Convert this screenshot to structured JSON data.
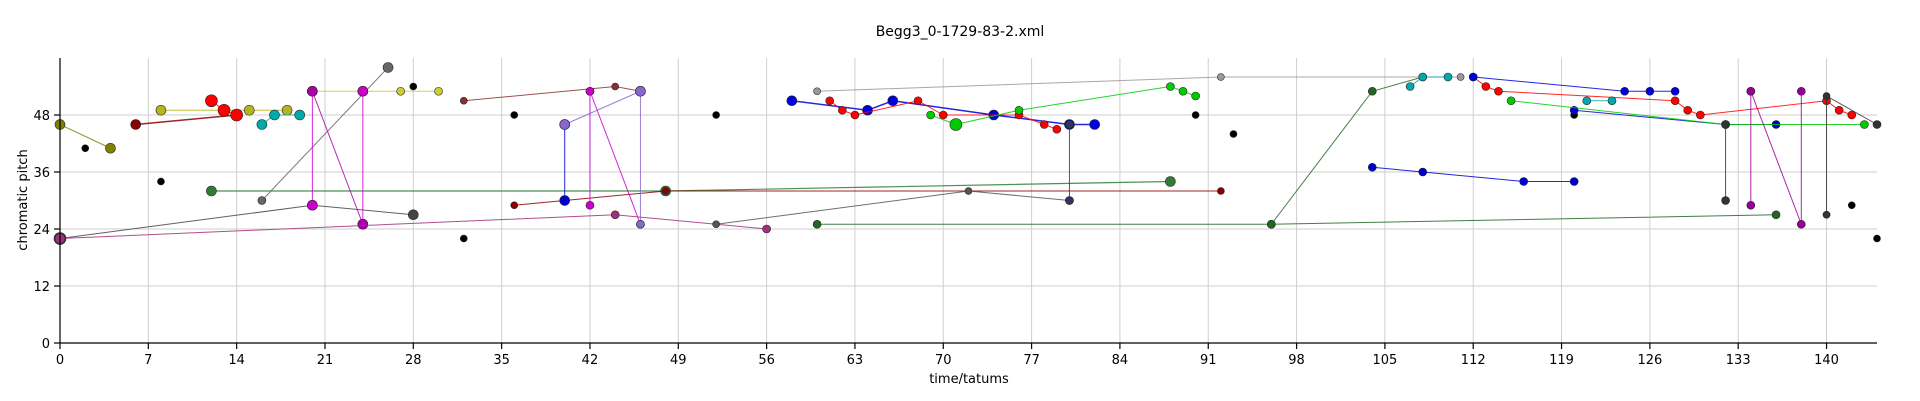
{
  "chart_data": {
    "type": "scatter",
    "title": "Begg3_0-1729-83-2.xml",
    "xlabel": "time/tatums",
    "ylabel": "chromatic pitch",
    "xlim": [
      0,
      144
    ],
    "ylim": [
      0,
      60
    ],
    "xticks": [
      0,
      7,
      14,
      21,
      28,
      35,
      42,
      49,
      56,
      63,
      70,
      77,
      84,
      91,
      98,
      105,
      112,
      119,
      126,
      133,
      140
    ],
    "yticks": [
      0,
      12,
      24,
      36,
      48
    ],
    "grid": true,
    "series": [
      {
        "color": "#808000",
        "width": 1,
        "points": [
          [
            0,
            46
          ],
          [
            4,
            41
          ]
        ],
        "sizes": [
          5,
          5
        ]
      },
      {
        "color": "#8b0000",
        "width": 1.5,
        "points": [
          [
            6,
            46
          ],
          [
            14,
            48
          ]
        ],
        "sizes": [
          5,
          5
        ]
      },
      {
        "color": "#b5b520",
        "width": 1,
        "points": [
          [
            8,
            49
          ],
          [
            15,
            49
          ],
          [
            18,
            49
          ]
        ],
        "sizes": [
          5,
          5,
          5
        ]
      },
      {
        "color": "#cccc33",
        "width": 1,
        "points": [
          [
            20,
            53
          ],
          [
            24,
            53
          ],
          [
            27,
            53
          ],
          [
            30,
            53
          ]
        ],
        "sizes": [
          4,
          5,
          4,
          4
        ]
      },
      {
        "color": "#ff0000",
        "width": 1,
        "points": [
          [
            12,
            51
          ],
          [
            13,
            49
          ],
          [
            14,
            48
          ]
        ],
        "sizes": [
          6,
          6,
          6
        ]
      },
      {
        "color": "#00aaaa",
        "width": 1,
        "points": [
          [
            16,
            46
          ],
          [
            17,
            48
          ],
          [
            19,
            48
          ]
        ],
        "sizes": [
          5,
          5,
          5
        ]
      },
      {
        "color": "#000000",
        "width": 0,
        "points": [
          [
            2,
            41
          ],
          [
            8,
            34
          ],
          [
            28,
            54
          ],
          [
            32,
            22
          ],
          [
            36,
            48
          ],
          [
            52,
            48
          ],
          [
            90,
            48
          ],
          [
            93,
            44
          ],
          [
            120,
            48
          ],
          [
            132,
            30
          ],
          [
            140,
            27
          ],
          [
            142,
            29
          ],
          [
            144,
            22
          ]
        ],
        "sizes": [
          3.5,
          3.5,
          3.5,
          3.5,
          3.5,
          3.5,
          3.5,
          3.5,
          3.5,
          3.5,
          3.5,
          3.5,
          3.5
        ]
      },
      {
        "color": "#2e7d32",
        "width": 1.2,
        "points": [
          [
            12,
            32
          ],
          [
            48,
            32
          ],
          [
            88,
            34
          ]
        ],
        "sizes": [
          5,
          5,
          5
        ]
      },
      {
        "color": "#444444",
        "width": 1,
        "points": [
          [
            0,
            22
          ],
          [
            20,
            29
          ],
          [
            28,
            27
          ]
        ],
        "sizes": [
          6,
          5,
          5
        ]
      },
      {
        "color": "#666666",
        "width": 1,
        "points": [
          [
            16,
            30
          ],
          [
            26,
            58
          ]
        ],
        "sizes": [
          4,
          5
        ]
      },
      {
        "color": "#cc00cc",
        "width": 1,
        "points": [
          [
            20,
            53
          ],
          [
            20,
            29
          ]
        ],
        "sizes": [
          5,
          5
        ]
      },
      {
        "color": "#cc00cc",
        "width": 1,
        "points": [
          [
            24,
            53
          ],
          [
            24,
            25
          ]
        ],
        "sizes": [
          5,
          5
        ]
      },
      {
        "color": "#aa00aa",
        "width": 1,
        "points": [
          [
            20,
            53
          ],
          [
            24,
            25
          ]
        ],
        "sizes": [
          5,
          5
        ]
      },
      {
        "color": "#a0307a",
        "width": 1,
        "points": [
          [
            0,
            22
          ],
          [
            44,
            27
          ],
          [
            56,
            24
          ]
        ],
        "sizes": [
          5,
          4,
          4
        ]
      },
      {
        "color": "#8b3030",
        "width": 1,
        "points": [
          [
            32,
            51
          ],
          [
            44,
            54
          ],
          [
            46,
            53
          ]
        ],
        "sizes": [
          3.5,
          3.5,
          5
        ]
      },
      {
        "color": "#8b0000",
        "width": 1,
        "points": [
          [
            36,
            29
          ],
          [
            48,
            32
          ],
          [
            92,
            32
          ]
        ],
        "sizes": [
          3.5,
          3.5,
          3.5
        ]
      },
      {
        "color": "#0000cc",
        "width": 1,
        "points": [
          [
            40,
            46
          ],
          [
            40,
            30
          ]
        ],
        "sizes": [
          5,
          5
        ]
      },
      {
        "color": "#cc00cc",
        "width": 1,
        "points": [
          [
            42,
            53
          ],
          [
            42,
            29
          ]
        ],
        "sizes": [
          4,
          4
        ]
      },
      {
        "color": "#cc00cc",
        "width": 1,
        "points": [
          [
            42,
            53
          ],
          [
            46,
            25
          ]
        ],
        "sizes": [
          4,
          4
        ]
      },
      {
        "color": "#8866cc",
        "width": 1,
        "points": [
          [
            40,
            46
          ],
          [
            46,
            53
          ],
          [
            46,
            25
          ]
        ],
        "sizes": [
          5,
          5,
          4
        ]
      },
      {
        "color": "#555555",
        "width": 1,
        "points": [
          [
            52,
            25
          ],
          [
            72,
            32
          ],
          [
            80,
            30
          ]
        ],
        "sizes": [
          3.5,
          3.5,
          4
        ]
      },
      {
        "color": "#0000dd",
        "width": 1.5,
        "points": [
          [
            58,
            51
          ],
          [
            64,
            49
          ],
          [
            66,
            51
          ],
          [
            74,
            48
          ],
          [
            80,
            46
          ],
          [
            82,
            46
          ]
        ],
        "sizes": [
          5,
          5,
          5,
          5,
          5,
          5
        ]
      },
      {
        "color": "#ff0000",
        "width": 1,
        "points": [
          [
            61,
            51
          ],
          [
            62,
            49
          ],
          [
            63,
            48
          ],
          [
            68,
            51
          ],
          [
            70,
            48
          ],
          [
            76,
            48
          ],
          [
            78,
            46
          ],
          [
            79,
            45
          ]
        ],
        "sizes": [
          4,
          4,
          4,
          4,
          4,
          4,
          4,
          4
        ]
      },
      {
        "color": "#00cc00",
        "width": 1,
        "points": [
          [
            69,
            48
          ],
          [
            71,
            46
          ],
          [
            76,
            49
          ],
          [
            88,
            54
          ],
          [
            89,
            53
          ],
          [
            90,
            52
          ]
        ],
        "sizes": [
          4,
          6,
          4,
          4,
          4,
          4
        ]
      },
      {
        "color": "#333366",
        "width": 1,
        "points": [
          [
            80,
            46
          ],
          [
            80,
            30
          ]
        ],
        "sizes": [
          4,
          4
        ]
      },
      {
        "color": "#999999",
        "width": 1,
        "points": [
          [
            60,
            53
          ],
          [
            92,
            56
          ],
          [
            111,
            56
          ]
        ],
        "sizes": [
          3.5,
          3.5,
          3.5
        ]
      },
      {
        "color": "#226622",
        "width": 1,
        "points": [
          [
            60,
            25
          ],
          [
            96,
            25
          ],
          [
            136,
            27
          ]
        ],
        "sizes": [
          4,
          4,
          4
        ]
      },
      {
        "color": "#226622",
        "width": 1,
        "points": [
          [
            96,
            25
          ],
          [
            104,
            53
          ],
          [
            108,
            56
          ]
        ],
        "sizes": [
          4,
          4,
          4
        ]
      },
      {
        "color": "#00aaaa",
        "width": 1,
        "points": [
          [
            107,
            54
          ],
          [
            108,
            56
          ],
          [
            110,
            56
          ]
        ],
        "sizes": [
          4,
          4,
          4
        ]
      },
      {
        "color": "#0000cc",
        "width": 1,
        "points": [
          [
            104,
            37
          ],
          [
            108,
            36
          ],
          [
            116,
            34
          ],
          [
            120,
            34
          ]
        ],
        "sizes": [
          4,
          4,
          4,
          4
        ]
      },
      {
        "color": "#ff0000",
        "width": 1,
        "points": [
          [
            112,
            56
          ],
          [
            113,
            54
          ],
          [
            114,
            53
          ],
          [
            128,
            51
          ],
          [
            129,
            49
          ],
          [
            130,
            48
          ],
          [
            140,
            51
          ],
          [
            141,
            49
          ],
          [
            142,
            48
          ]
        ],
        "sizes": [
          4,
          4,
          4,
          4,
          4,
          4,
          4,
          4,
          4
        ]
      },
      {
        "color": "#0000dd",
        "width": 1,
        "points": [
          [
            112,
            56
          ],
          [
            124,
            53
          ],
          [
            126,
            53
          ],
          [
            128,
            53
          ]
        ],
        "sizes": [
          4,
          4,
          4,
          4
        ]
      },
      {
        "color": "#0000dd",
        "width": 1,
        "points": [
          [
            120,
            49
          ],
          [
            132,
            46
          ],
          [
            136,
            46
          ]
        ],
        "sizes": [
          4,
          4,
          4
        ]
      },
      {
        "color": "#00aaaa",
        "width": 1,
        "points": [
          [
            121,
            51
          ],
          [
            123,
            51
          ]
        ],
        "sizes": [
          4,
          4
        ]
      },
      {
        "color": "#00cc00",
        "width": 1,
        "points": [
          [
            115,
            51
          ],
          [
            132,
            46
          ],
          [
            143,
            46
          ]
        ],
        "sizes": [
          4,
          4,
          4
        ]
      },
      {
        "color": "#990099",
        "width": 1,
        "points": [
          [
            134,
            53
          ],
          [
            134,
            29
          ]
        ],
        "sizes": [
          4,
          4
        ]
      },
      {
        "color": "#990099",
        "width": 1,
        "points": [
          [
            134,
            53
          ],
          [
            138,
            25
          ],
          [
            138,
            53
          ]
        ],
        "sizes": [
          4,
          4,
          4
        ]
      },
      {
        "color": "#333333",
        "width": 1,
        "points": [
          [
            132,
            46
          ],
          [
            132,
            30
          ]
        ],
        "sizes": [
          4,
          4
        ]
      },
      {
        "color": "#333333",
        "width": 1,
        "points": [
          [
            144,
            46
          ],
          [
            140,
            52
          ],
          [
            140,
            27
          ]
        ],
        "sizes": [
          4,
          3.5,
          3.5
        ]
      }
    ]
  }
}
